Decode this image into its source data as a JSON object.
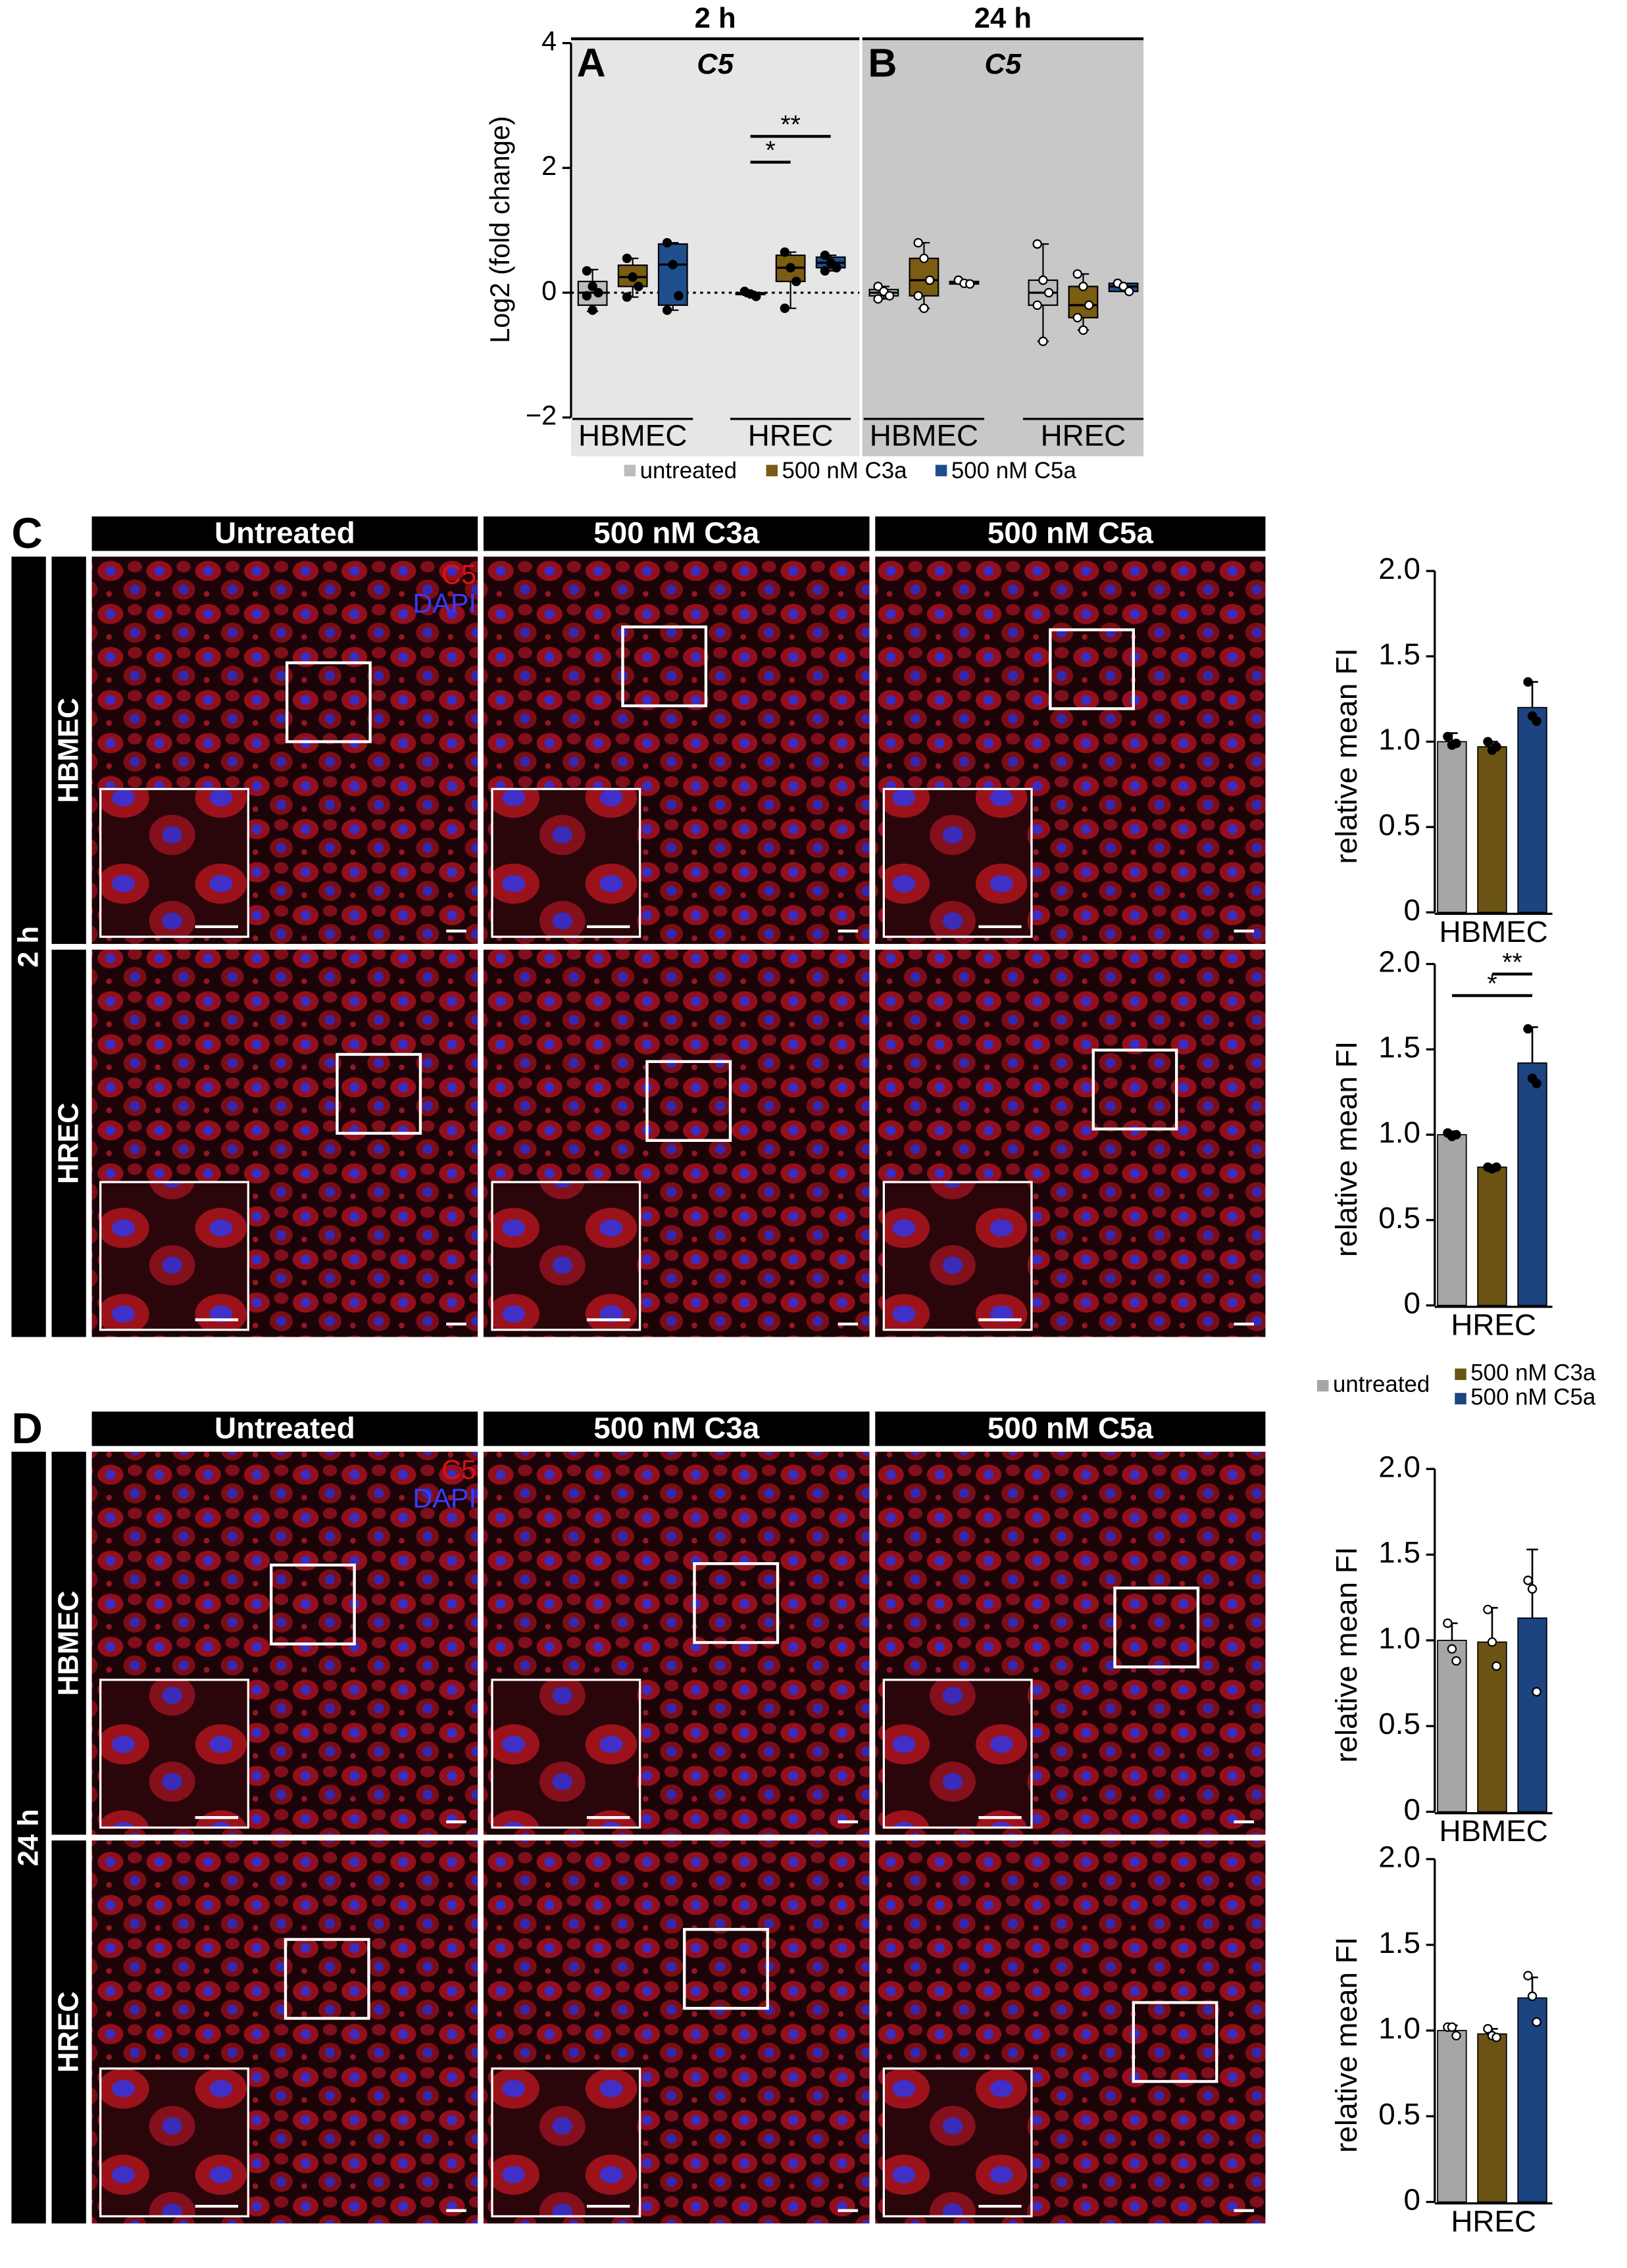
{
  "chart_data": [
    {
      "type": "box",
      "panel": "A",
      "title": "2 h",
      "subtitle": "C5",
      "ylabel": "Log2 (fold change)",
      "ylim": [
        -2,
        4
      ],
      "yticks": [
        {
          "value": -2,
          "label": "−2"
        },
        0,
        2,
        4
      ],
      "hline": 0,
      "categories": [
        "HBMEC",
        "HREC"
      ],
      "series": [
        {
          "name": "untreated",
          "color": "#bdbdbd",
          "values": [
            {
              "min": -0.3,
              "q1": -0.2,
              "median": 0.0,
              "q3": 0.18,
              "max": 0.37
            },
            {
              "min": -0.06,
              "q1": -0.03,
              "median": -0.02,
              "q3": 0.0,
              "max": 0.02
            }
          ],
          "points": [
            [
              0.35,
              0.1,
              0.0,
              -0.05,
              -0.28
            ],
            [
              0.02,
              -0.02,
              -0.06
            ]
          ]
        },
        {
          "name": "500 nM C3a",
          "color": "#7a5c12",
          "values": [
            {
              "min": -0.07,
              "q1": 0.1,
              "median": 0.25,
              "q3": 0.44,
              "max": 0.55
            },
            {
              "min": -0.25,
              "q1": 0.18,
              "median": 0.4,
              "q3": 0.6,
              "max": 0.65
            }
          ],
          "points": [
            [
              0.55,
              0.25,
              0.1,
              -0.07
            ],
            [
              0.65,
              0.4,
              0.18,
              -0.25
            ]
          ]
        },
        {
          "name": "500 nM C5a",
          "color": "#1f4e8c",
          "values": [
            {
              "min": -0.28,
              "q1": -0.2,
              "median": 0.45,
              "q3": 0.78,
              "max": 0.8
            },
            {
              "min": 0.35,
              "q1": 0.4,
              "median": 0.48,
              "q3": 0.57,
              "max": 0.6
            }
          ],
          "points": [
            [
              0.8,
              0.45,
              -0.05,
              -0.28
            ],
            [
              0.6,
              0.48,
              0.4,
              0.35
            ]
          ]
        }
      ],
      "annotations": [
        "*",
        "**"
      ]
    },
    {
      "type": "box",
      "panel": "B",
      "title": "24 h",
      "subtitle": "C5",
      "ylim": [
        -2,
        4
      ],
      "categories": [
        "HBMEC",
        "HREC"
      ],
      "series": [
        {
          "color": "#bdbdbd",
          "values": [
            {
              "min": -0.1,
              "q1": -0.05,
              "median": 0.0,
              "q3": 0.05,
              "max": 0.1
            },
            {
              "min": -0.78,
              "q1": -0.2,
              "median": 0.0,
              "q3": 0.2,
              "max": 0.78
            }
          ],
          "points": [
            [
              0.1,
              0.02,
              -0.05,
              -0.1
            ],
            [
              0.78,
              0.2,
              0.0,
              -0.2,
              -0.78
            ]
          ]
        },
        {
          "color": "#7a5c12",
          "values": [
            {
              "min": -0.25,
              "q1": -0.05,
              "median": 0.2,
              "q3": 0.55,
              "max": 0.8
            },
            {
              "min": -0.6,
              "q1": -0.4,
              "median": -0.2,
              "q3": 0.1,
              "max": 0.3
            }
          ],
          "points": [
            [
              0.8,
              0.55,
              0.2,
              -0.05,
              -0.25
            ],
            [
              0.3,
              0.1,
              -0.2,
              -0.4,
              -0.6
            ]
          ]
        },
        {
          "color": "#1f4e8c",
          "values": [
            {
              "min": 0.14,
              "q1": 0.14,
              "median": 0.15,
              "q3": 0.18,
              "max": 0.2
            },
            {
              "min": 0.02,
              "q1": 0.02,
              "median": 0.1,
              "q3": 0.15,
              "max": 0.15
            }
          ],
          "points": [
            [
              0.2,
              0.15,
              0.14
            ],
            [
              0.15,
              0.1,
              0.02
            ]
          ]
        }
      ]
    },
    {
      "type": "bar",
      "xlabel": "HBMEC",
      "ylabel": "relative mean FI",
      "ylim": [
        0,
        2
      ],
      "yticks": [
        0,
        0.5,
        {
          "value": 1,
          "label": "1.0"
        },
        1.5,
        {
          "value": 2,
          "label": "2.0"
        }
      ],
      "series": [
        {
          "color": "#a6a6a6",
          "value": 1.0,
          "error": 0.05,
          "points": [
            1.03,
            0.98,
            0.99
          ]
        },
        {
          "color": "#6b5314",
          "value": 0.97,
          "error": 0.03,
          "points": [
            1.0,
            0.95,
            0.97
          ]
        },
        {
          "color": "#1c4480",
          "value": 1.2,
          "error": 0.15,
          "points": [
            1.35,
            1.15,
            1.12
          ]
        }
      ]
    },
    {
      "type": "bar",
      "xlabel": "HREC",
      "ylabel": "relative mean FI",
      "ylim": [
        0,
        2
      ],
      "yticks": [
        0,
        0.5,
        {
          "value": 1,
          "label": "1.0"
        },
        1.5,
        {
          "value": 2,
          "label": "2.0"
        }
      ],
      "series": [
        {
          "color": "#a6a6a6",
          "value": 1.0,
          "error": 0.02,
          "points": [
            1.01,
            0.99,
            1.0
          ]
        },
        {
          "color": "#6b5314",
          "value": 0.81,
          "error": 0.01,
          "points": [
            0.81,
            0.8,
            0.81
          ]
        },
        {
          "color": "#1c4480",
          "value": 1.42,
          "error": 0.21,
          "points": [
            1.62,
            1.33,
            1.3
          ]
        }
      ],
      "annotations": [
        "*",
        "**"
      ]
    },
    {
      "type": "bar",
      "xlabel": "HBMEC",
      "ylabel": "relative mean FI",
      "ylim": [
        0,
        2
      ],
      "yticks": [
        0,
        0.5,
        {
          "value": 1,
          "label": "1.0"
        },
        1.5,
        {
          "value": 2,
          "label": "2.0"
        }
      ],
      "series": [
        {
          "name": "untreated",
          "color": "#a6a6a6",
          "value": 1.0,
          "error": 0.1,
          "points": [
            1.1,
            0.95,
            0.88
          ]
        },
        {
          "name": "500 nM C3a",
          "color": "#6b5314",
          "value": 0.99,
          "error": 0.2,
          "points": [
            1.18,
            0.99,
            0.85
          ]
        },
        {
          "name": "500 nM C5a",
          "color": "#1c4480",
          "value": 1.13,
          "error": 0.4,
          "points": [
            1.35,
            1.3,
            0.7
          ]
        }
      ]
    },
    {
      "type": "bar",
      "xlabel": "HREC",
      "ylabel": "relative mean FI",
      "ylim": [
        0,
        2
      ],
      "yticks": [
        0,
        0.5,
        {
          "value": 1,
          "label": "1.0"
        },
        1.5,
        {
          "value": 2,
          "label": "2.0"
        }
      ],
      "series": [
        {
          "color": "#a6a6a6",
          "value": 1.0,
          "error": 0.03,
          "points": [
            1.02,
            1.02,
            0.97
          ]
        },
        {
          "color": "#6b5314",
          "value": 0.98,
          "error": 0.03,
          "points": [
            1.01,
            0.97,
            0.96
          ]
        },
        {
          "color": "#1c4480",
          "value": 1.19,
          "error": 0.12,
          "points": [
            1.32,
            1.2,
            1.05
          ]
        }
      ]
    }
  ],
  "micrographs": [
    {
      "panel": "C",
      "time": "2 h",
      "columns": [
        "Untreated",
        "500 nM C3a",
        "500 nM C5a"
      ],
      "rows": [
        "HBMEC",
        "HREC"
      ],
      "channels": [
        {
          "name": "C5",
          "color": "#e01010"
        },
        {
          "name": "DAPI",
          "color": "#3a3aff"
        }
      ]
    },
    {
      "panel": "D",
      "time": "24 h",
      "columns": [
        "Untreated",
        "500 nM C3a",
        "500 nM C5a"
      ],
      "rows": [
        "HBMEC",
        "HREC"
      ],
      "channels": [
        {
          "name": "C5",
          "color": "#e01010"
        },
        {
          "name": "DAPI",
          "color": "#3a3aff"
        }
      ]
    }
  ]
}
